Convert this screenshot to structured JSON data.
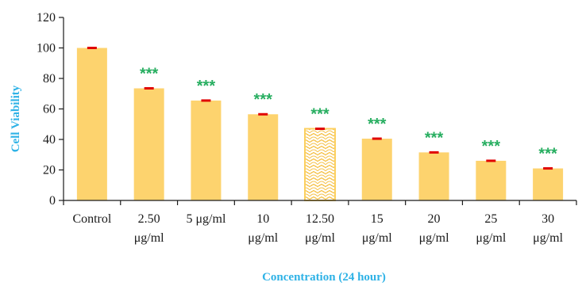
{
  "chart_data": {
    "type": "bar",
    "title": "",
    "xlabel": "Concentration (24 hour)",
    "ylabel": "Cell Viability",
    "ylim": [
      0,
      120
    ],
    "yticks": [
      0,
      20,
      40,
      60,
      80,
      100,
      120
    ],
    "categories": [
      [
        "Control"
      ],
      [
        "2.50",
        "μg/ml"
      ],
      [
        "5 μg/ml"
      ],
      [
        "10",
        "μg/ml"
      ],
      [
        "12.50",
        "μg/ml"
      ],
      [
        "15",
        "μg/ml"
      ],
      [
        "20",
        "μg/ml"
      ],
      [
        "25",
        "μg/ml"
      ],
      [
        "30",
        "μg/ml"
      ]
    ],
    "values": [
      100,
      73.5,
      65.5,
      56.5,
      47,
      40.5,
      31.5,
      26,
      21
    ],
    "errors": [
      0.4,
      0.4,
      0.4,
      0.4,
      0.4,
      0.4,
      0.4,
      0.4,
      0.4
    ],
    "significance": [
      "",
      "***",
      "***",
      "***",
      "***",
      "***",
      "***",
      "***",
      "***"
    ],
    "highlighted_index": 4,
    "grid": false,
    "legend": "none",
    "colors": {
      "bar": "#fdd36e",
      "highlight_pattern": "#fcd060",
      "error": "#e00000",
      "axis_title": "#2eb2e6",
      "significance": "#27ae60",
      "axis": "#1a1a1a"
    }
  }
}
